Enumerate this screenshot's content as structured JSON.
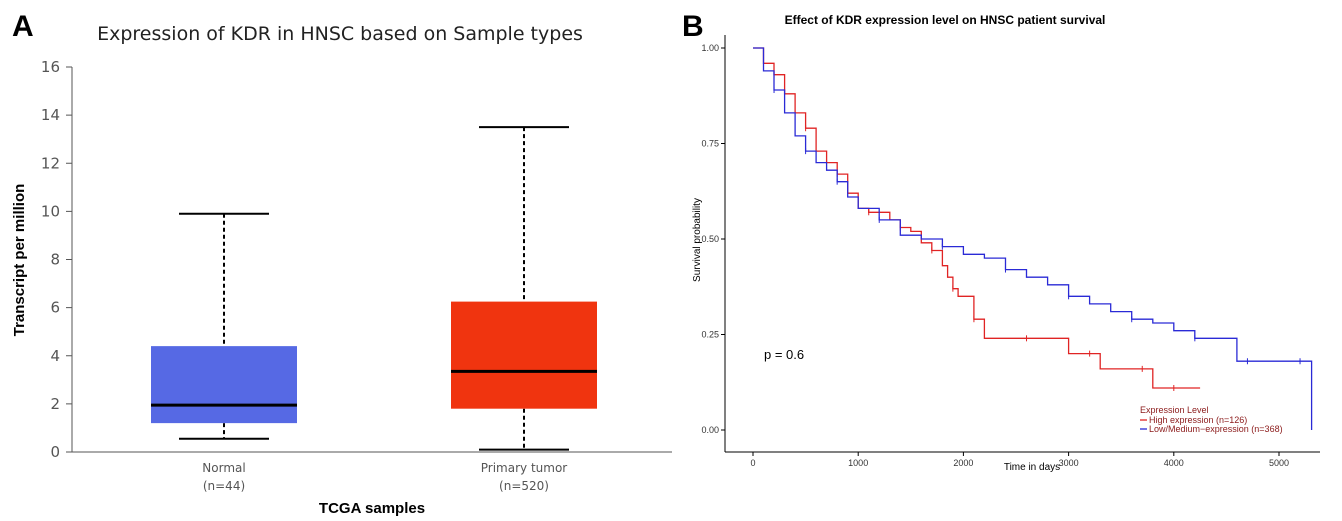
{
  "panels": {
    "a_letter": "A",
    "b_letter": "B"
  },
  "chart_data": [
    {
      "type": "box",
      "title": "Expression of KDR in HNSC based on Sample types",
      "xlabel": "TCGA samples",
      "ylabel": "Transcript per million",
      "ylim": [
        0,
        16
      ],
      "yticks": [
        0,
        2,
        4,
        6,
        8,
        10,
        12,
        14,
        16
      ],
      "categories": [
        {
          "name": "Normal",
          "n": "(n=44)",
          "color": "#5669e4",
          "whisker_low": 0.55,
          "q1": 1.2,
          "median": 1.95,
          "q3": 4.4,
          "whisker_high": 9.9
        },
        {
          "name": "Primary tumor",
          "n": "(n=520)",
          "color": "#f0340f",
          "whisker_low": 0.1,
          "q1": 1.8,
          "median": 3.35,
          "q3": 6.25,
          "whisker_high": 13.5
        }
      ]
    },
    {
      "type": "line",
      "title": "Effect of KDR expression level on HNSC patient survival",
      "xlabel": "Time in days",
      "ylabel": "Survival probability",
      "xlim": [
        0,
        5300
      ],
      "ylim": [
        0,
        1
      ],
      "xticks": [
        0,
        1000,
        2000,
        3000,
        4000,
        5000
      ],
      "yticks": [
        "0.00",
        "0.25",
        "0.50",
        "0.75",
        "1.00"
      ],
      "annotation": "p = 0.6",
      "legend_title": "Expression Level",
      "legend_position": "bottom-right",
      "series": [
        {
          "name": "High expression (n=126)",
          "color": "#e02424",
          "x": [
            0,
            100,
            200,
            300,
            400,
            500,
            600,
            700,
            800,
            900,
            1000,
            1100,
            1200,
            1300,
            1400,
            1500,
            1600,
            1700,
            1800,
            1850,
            1900,
            1950,
            2000,
            2100,
            2200,
            2400,
            2600,
            2800,
            3000,
            3200,
            3300,
            3500,
            3700,
            3800,
            3900,
            4000,
            4100,
            4200,
            4250
          ],
          "y": [
            1.0,
            0.96,
            0.93,
            0.88,
            0.83,
            0.79,
            0.73,
            0.7,
            0.67,
            0.62,
            0.58,
            0.57,
            0.57,
            0.55,
            0.53,
            0.52,
            0.49,
            0.47,
            0.43,
            0.4,
            0.37,
            0.35,
            0.35,
            0.29,
            0.24,
            0.24,
            0.24,
            0.24,
            0.2,
            0.2,
            0.16,
            0.16,
            0.16,
            0.11,
            0.11,
            0.11,
            0.11,
            0.11,
            0.11
          ]
        },
        {
          "name": "Low/Medium−expression (n=368)",
          "color": "#2a2ad6",
          "x": [
            0,
            100,
            200,
            300,
            400,
            500,
            600,
            700,
            800,
            900,
            1000,
            1200,
            1400,
            1600,
            1800,
            2000,
            2200,
            2400,
            2600,
            2800,
            3000,
            3200,
            3400,
            3600,
            3800,
            4000,
            4200,
            4400,
            4600,
            4700,
            4800,
            5000,
            5200,
            5300,
            5310
          ],
          "y": [
            1.0,
            0.94,
            0.89,
            0.83,
            0.77,
            0.73,
            0.7,
            0.68,
            0.65,
            0.61,
            0.58,
            0.55,
            0.51,
            0.5,
            0.48,
            0.46,
            0.45,
            0.42,
            0.4,
            0.38,
            0.35,
            0.33,
            0.31,
            0.29,
            0.28,
            0.26,
            0.24,
            0.24,
            0.18,
            0.18,
            0.18,
            0.18,
            0.18,
            0.18,
            0.0
          ]
        }
      ]
    }
  ]
}
